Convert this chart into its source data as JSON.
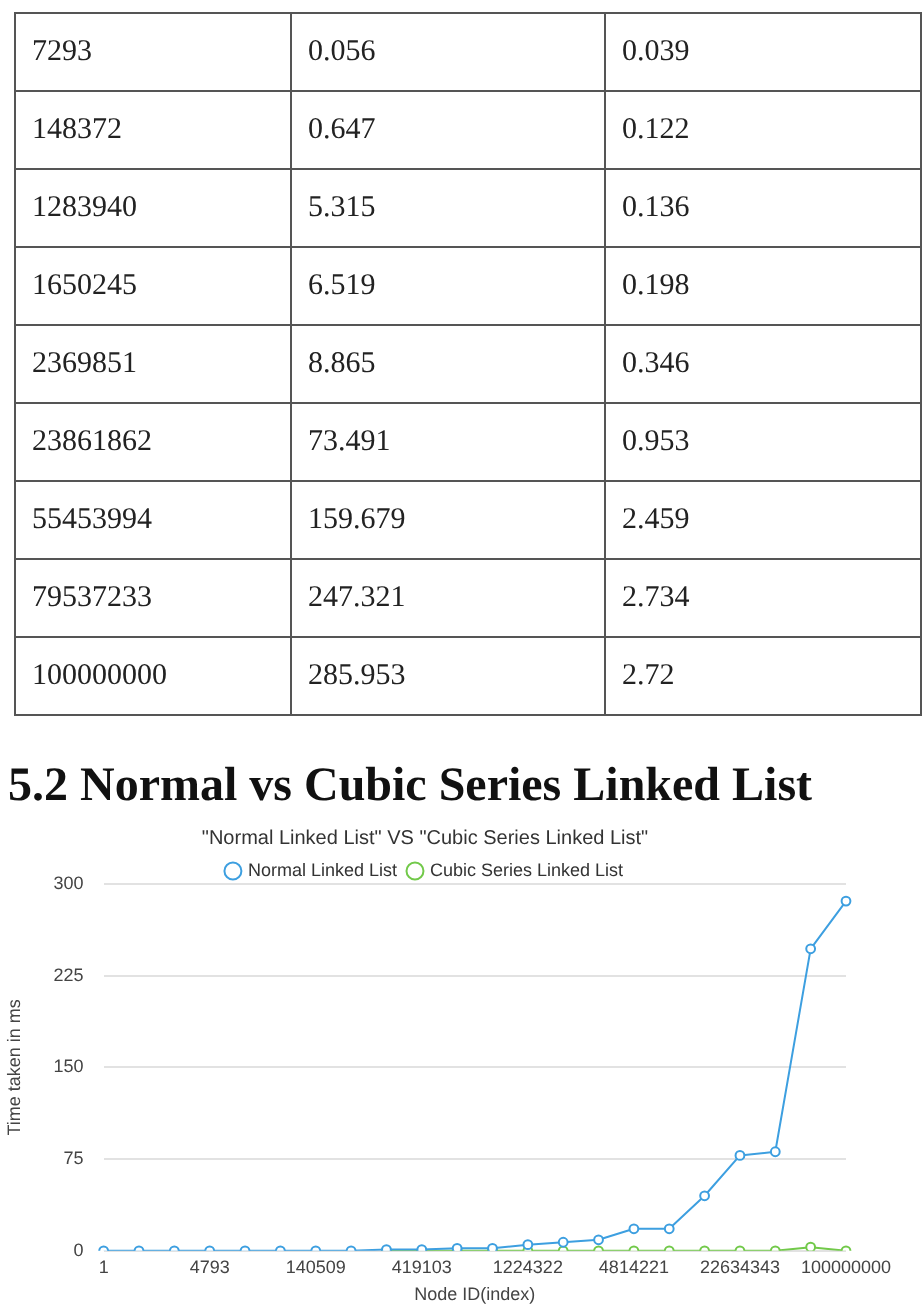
{
  "chart_data": [
    {
      "type": "other",
      "annotations": [
        "7293",
        "0.056",
        "0.039",
        "148372",
        "0.647",
        "0.122",
        "1283940",
        "5.315",
        "0.136",
        "1650245",
        "6.519",
        "0.198",
        "2369851",
        "8.865",
        "0.346",
        "23861862",
        "73.491",
        "0.953",
        "55453994",
        "159.679",
        "2.459",
        "79537233",
        "247.321",
        "2.734",
        "100000000",
        "285.953",
        "2.72"
      ]
    },
    {
      "type": "line",
      "title": "5.2 Normal vs Cubic Series Linked List",
      "subtitle": "\"Normal Linked List\" VS \"Cubic Series Linked List\"",
      "xlabel": "Node ID(index)",
      "ylabel": "Time taken in ms",
      "categories": [
        "1",
        null,
        null,
        "4793",
        null,
        null,
        "140509",
        null,
        null,
        "419103",
        null,
        null,
        "1224322",
        null,
        null,
        "4814221",
        null,
        null,
        "22634343",
        null,
        null,
        "100000000"
      ],
      "series": [
        {
          "name": "Normal Linked List",
          "color": "#3d9fe0",
          "values": [
            0,
            0,
            0,
            0,
            0,
            0,
            0,
            0,
            1,
            1,
            2,
            2,
            5,
            7,
            9,
            18,
            18,
            45,
            78,
            81,
            247,
            286
          ]
        },
        {
          "name": "Cubic Series Linked List",
          "color": "#72c94a",
          "values": [
            null,
            null,
            null,
            null,
            null,
            null,
            null,
            null,
            0,
            0,
            0,
            0,
            0,
            0,
            0,
            0,
            0,
            0,
            0,
            0,
            3,
            0
          ]
        }
      ],
      "ylim": [
        0,
        300
      ],
      "yticks": [
        0,
        75,
        150,
        225,
        300
      ],
      "grid": "y",
      "legend": "top",
      "marker": "circle",
      "line_style": "solid"
    }
  ]
}
